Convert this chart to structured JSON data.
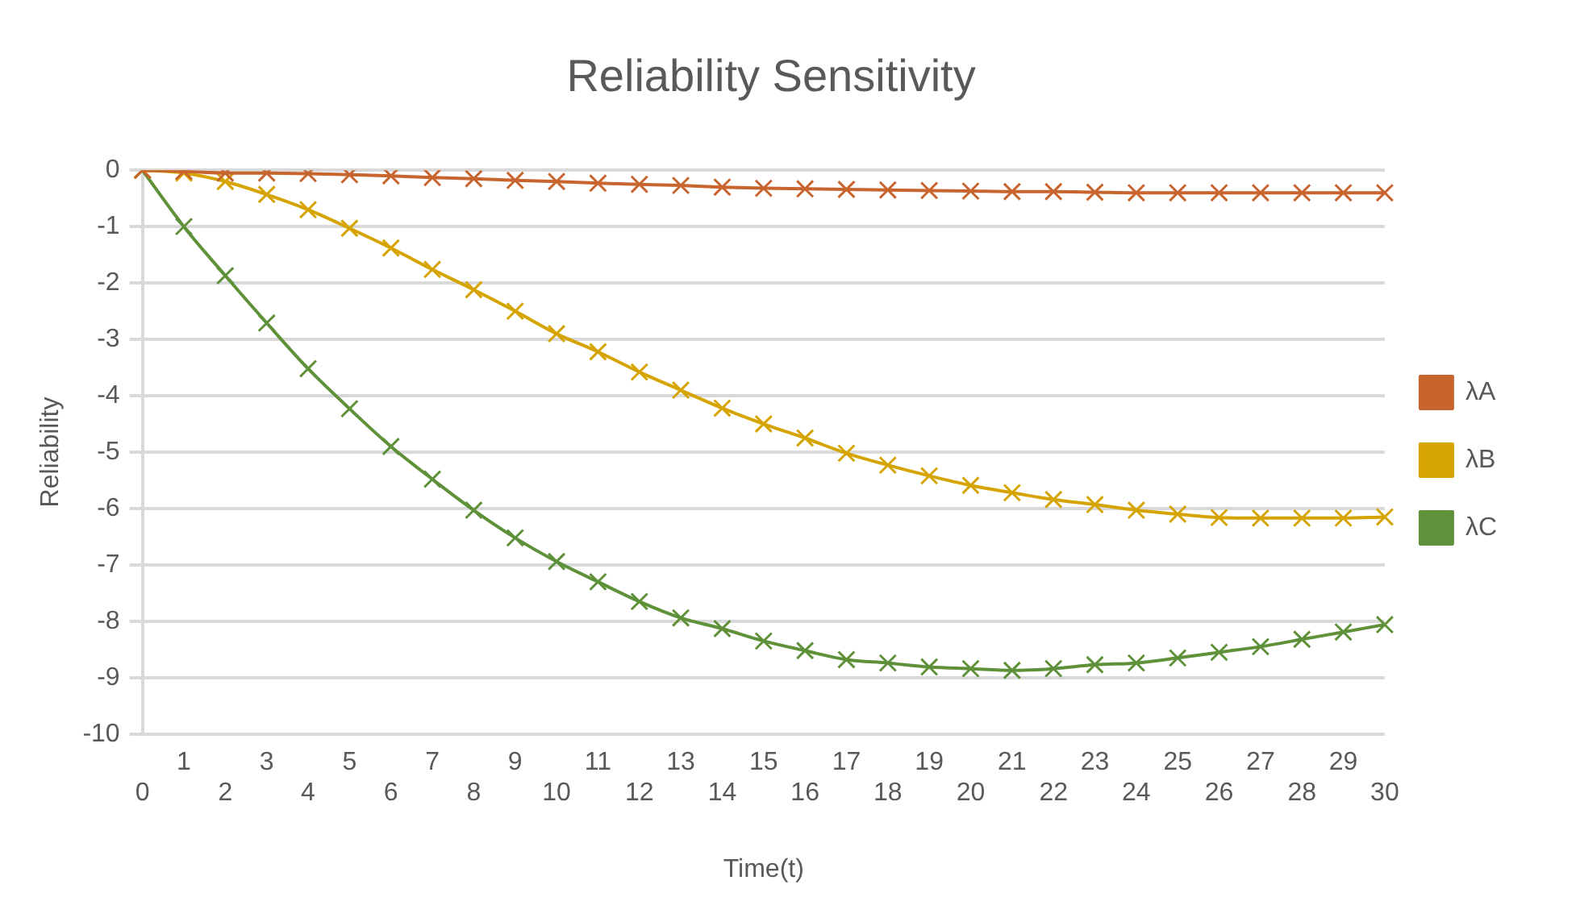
{
  "chart_data": {
    "type": "line",
    "title": "Reliability Sensitivity",
    "xlabel": "Time(t)",
    "ylabel": "Reliability",
    "categories": [
      "0",
      "1",
      "2",
      "3",
      "4",
      "5",
      "6",
      "7",
      "8",
      "9",
      "10",
      "11",
      "12",
      "13",
      "14",
      "15",
      "16",
      "17",
      "18",
      "19",
      "20",
      "21",
      "22",
      "23",
      "24",
      "25",
      "26",
      "27",
      "28",
      "29",
      "30"
    ],
    "series": [
      {
        "name": "λA",
        "color": "#c8642e",
        "values": [
          0,
          -0.02,
          -0.05,
          -0.05,
          -0.06,
          -0.08,
          -0.1,
          -0.13,
          -0.15,
          -0.18,
          -0.2,
          -0.23,
          -0.25,
          -0.27,
          -0.3,
          -0.32,
          -0.33,
          -0.34,
          -0.35,
          -0.36,
          -0.37,
          -0.38,
          -0.38,
          -0.39,
          -0.4,
          -0.4,
          -0.4,
          -0.4,
          -0.4,
          -0.4,
          -0.4
        ]
      },
      {
        "name": "λB",
        "color": "#d6a400",
        "values": [
          0,
          -0.05,
          -0.2,
          -0.43,
          -0.7,
          -1.03,
          -1.38,
          -1.76,
          -2.12,
          -2.5,
          -2.9,
          -3.22,
          -3.58,
          -3.9,
          -4.22,
          -4.5,
          -4.75,
          -5.02,
          -5.23,
          -5.42,
          -5.59,
          -5.72,
          -5.84,
          -5.93,
          -6.03,
          -6.1,
          -6.16,
          -6.17,
          -6.17,
          -6.17,
          -6.15
        ]
      },
      {
        "name": "λC",
        "color": "#5e9139",
        "values": [
          0,
          -1,
          -1.87,
          -2.71,
          -3.52,
          -4.23,
          -4.9,
          -5.48,
          -6.03,
          -6.52,
          -6.94,
          -7.3,
          -7.65,
          -7.94,
          -8.13,
          -8.35,
          -8.52,
          -8.68,
          -8.74,
          -8.81,
          -8.84,
          -8.87,
          -8.84,
          -8.77,
          -8.74,
          -8.65,
          -8.55,
          -8.45,
          -8.32,
          -8.19,
          -8.06
        ]
      }
    ],
    "ylim": [
      -10,
      0
    ],
    "yticks": [
      -10,
      -9,
      -8,
      -7,
      -6,
      -5,
      -4,
      -3,
      -2,
      -1,
      0
    ],
    "grid": "y",
    "legend": "right",
    "marker": "cross"
  }
}
